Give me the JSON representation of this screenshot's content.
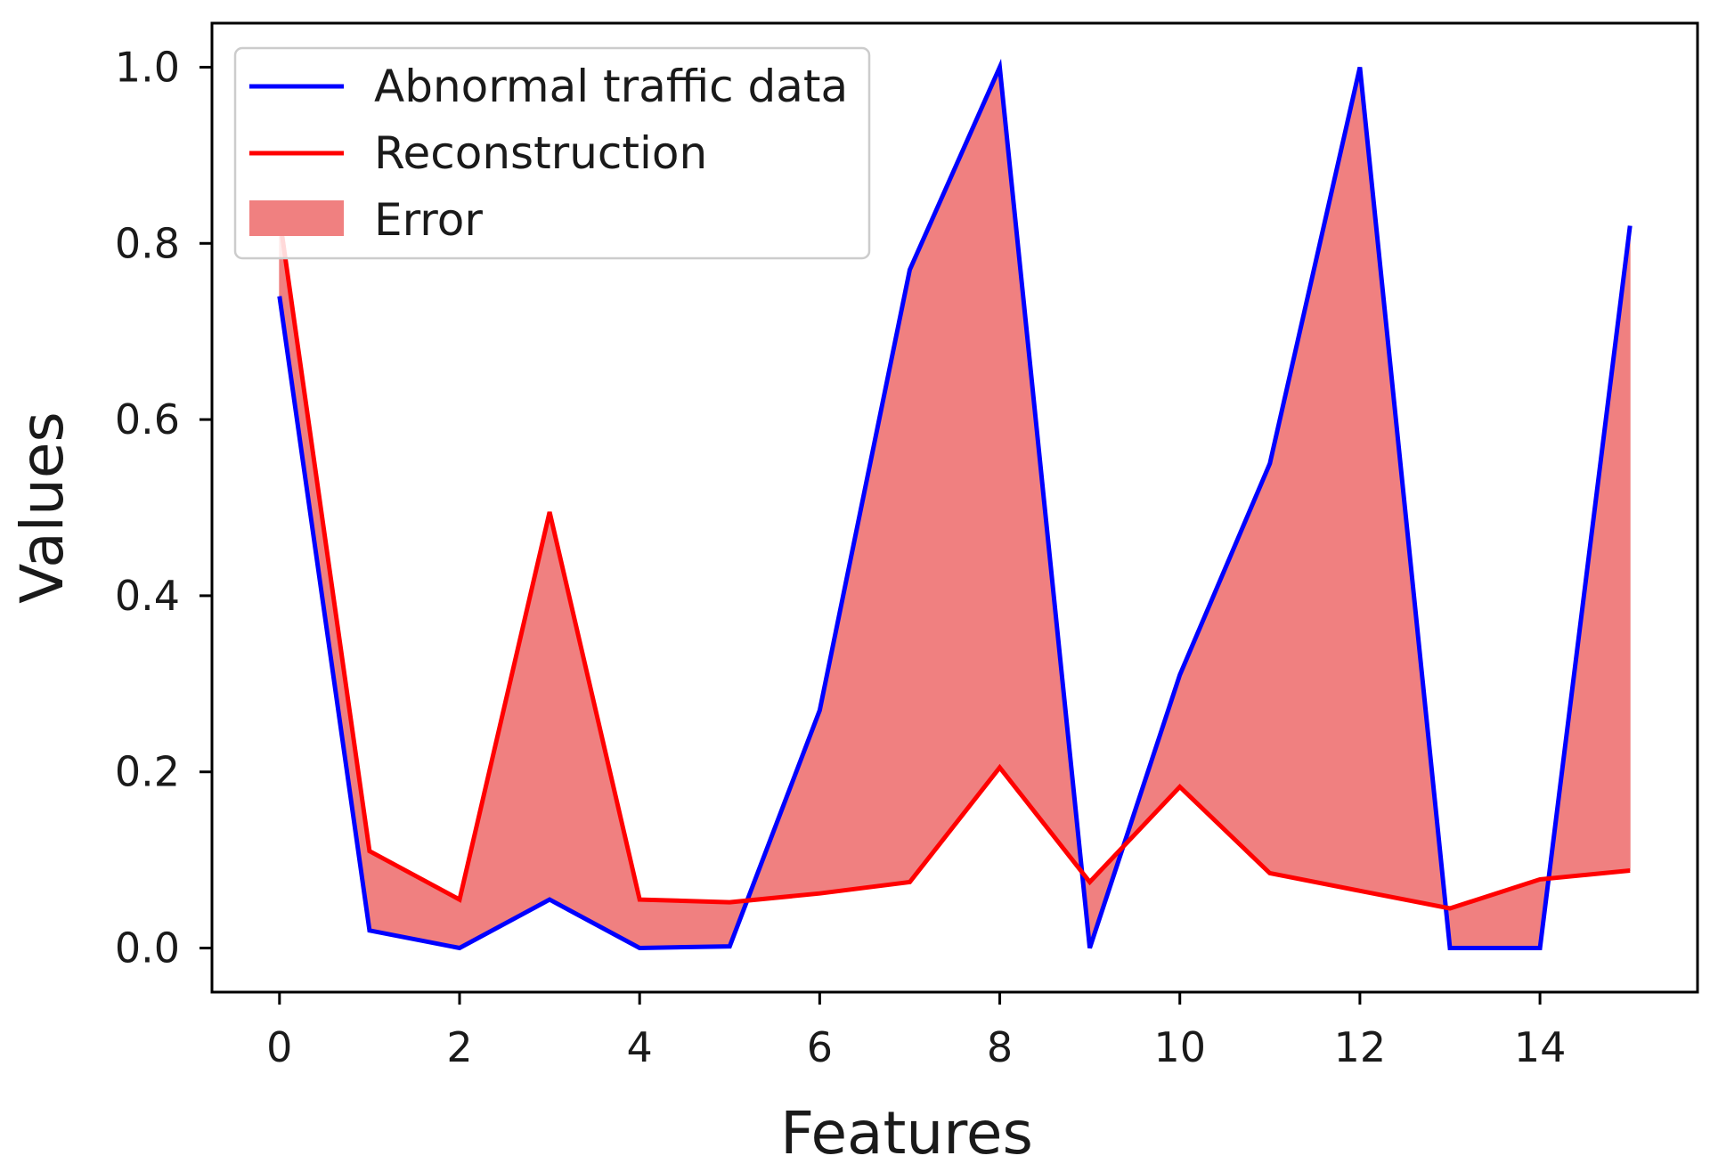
{
  "chart_data": {
    "type": "line",
    "title": "",
    "xlabel": "Features",
    "ylabel": "Values",
    "xlim": [
      -0.75,
      15.75
    ],
    "ylim": [
      -0.05,
      1.05
    ],
    "xticks": [
      0,
      2,
      4,
      6,
      8,
      10,
      12,
      14
    ],
    "xtick_labels": [
      "0",
      "2",
      "4",
      "6",
      "8",
      "10",
      "12",
      "14"
    ],
    "yticks": [
      0.0,
      0.2,
      0.4,
      0.6,
      0.8,
      1.0
    ],
    "ytick_labels": [
      "0.0",
      "0.2",
      "0.4",
      "0.6",
      "0.8",
      "1.0"
    ],
    "grid": false,
    "legend_position": "top-left",
    "x": [
      0,
      1,
      2,
      3,
      4,
      5,
      6,
      7,
      8,
      9,
      10,
      11,
      12,
      13,
      14,
      15
    ],
    "series": [
      {
        "name": "Abnormal traffic data",
        "color": "#0000ff",
        "values": [
          0.74,
          0.02,
          0.0,
          0.055,
          0.0,
          0.002,
          0.27,
          0.77,
          1.0,
          0.0,
          0.31,
          0.55,
          1.0,
          0.0,
          0.0,
          0.82
        ]
      },
      {
        "name": "Reconstruction",
        "color": "#ff0000",
        "values": [
          0.83,
          0.11,
          0.055,
          0.495,
          0.055,
          0.052,
          0.062,
          0.075,
          0.205,
          0.075,
          0.183,
          0.085,
          0.065,
          0.045,
          0.078,
          0.088
        ]
      }
    ],
    "fill_between": {
      "name": "Error",
      "color": "#f08080"
    }
  }
}
